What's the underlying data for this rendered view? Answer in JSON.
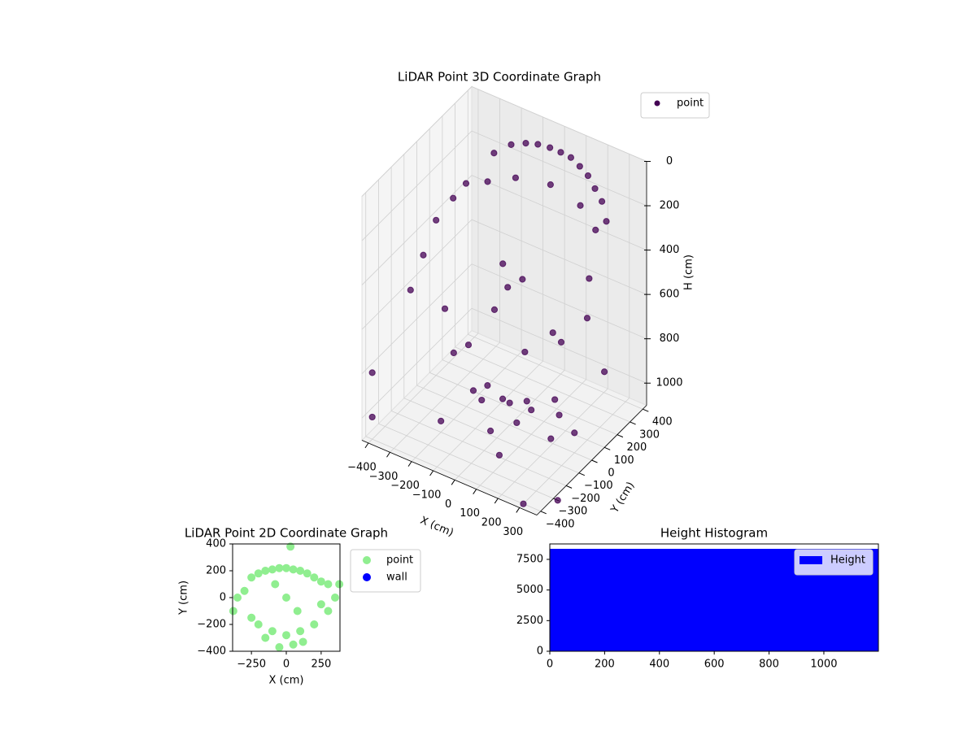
{
  "chart_data": [
    {
      "type": "scatter3d",
      "title": "LiDAR Point 3D Coordinate Graph",
      "xlabel": "X (cm)",
      "ylabel": "Y (cm)",
      "zlabel": "H (cm)",
      "xlim": [
        -430,
        380
      ],
      "ylim": [
        -430,
        430
      ],
      "zlim": [
        1100,
        0
      ],
      "xticks": [
        {
          "value": -400,
          "label": "−400"
        },
        {
          "value": -300,
          "label": "−300"
        },
        {
          "value": -200,
          "label": "−200"
        },
        {
          "value": -100,
          "label": "−100"
        },
        0,
        100,
        200,
        300
      ],
      "yticks": [
        {
          "value": -400,
          "label": "−400"
        },
        {
          "value": -300,
          "label": "−300"
        },
        {
          "value": -200,
          "label": "−200"
        },
        {
          "value": -100,
          "label": "−100"
        },
        0,
        100,
        200,
        300,
        400
      ],
      "zticks": [
        0,
        200,
        400,
        600,
        800,
        1000
      ],
      "grid": true,
      "series": [
        {
          "name": "point",
          "color": "#440154",
          "x": [
            -250,
            -200,
            -150,
            -100,
            -50,
            0,
            50,
            100,
            150,
            200,
            250,
            300,
            -250,
            -150,
            0,
            150,
            250,
            -400,
            -400,
            -400,
            -380,
            -350,
            -300,
            -200,
            -100,
            0,
            100,
            200,
            300,
            250,
            -50,
            150,
            -250,
            50,
            -150,
            350,
            0,
            50,
            -50,
            100,
            80,
            -100,
            150,
            200,
            -150,
            0,
            250,
            300,
            -200,
            100,
            -400,
            -400,
            300,
            400
          ],
          "y": [
            300,
            350,
            380,
            390,
            400,
            400,
            395,
            380,
            360,
            330,
            300,
            250,
            250,
            300,
            320,
            300,
            250,
            100,
            0,
            -100,
            200,
            250,
            0,
            -100,
            50,
            100,
            -50,
            0,
            100,
            200,
            -200,
            150,
            100,
            -100,
            200,
            150,
            0,
            50,
            30,
            0,
            -80,
            -50,
            100,
            50,
            80,
            -150,
            -100,
            0,
            -200,
            -250,
            -400,
            -400,
            -400,
            -300
          ],
          "z": [
            150,
            120,
            110,
            100,
            100,
            100,
            100,
            110,
            120,
            140,
            160,
            200,
            250,
            220,
            200,
            220,
            260,
            400,
            500,
            600,
            350,
            300,
            700,
            800,
            650,
            500,
            700,
            600,
            550,
            450,
            850,
            750,
            900,
            400,
            550,
            800,
            1000,
            1000,
            1020,
            990,
            1010,
            1000,
            980,
            1000,
            1030,
            1040,
            1000,
            1010,
            1050,
            1050,
            1000,
            800,
            1100,
            1100
          ]
        }
      ]
    },
    {
      "type": "scatter",
      "title": "LiDAR Point 2D Coordinate Graph",
      "xlabel": "X (cm)",
      "ylabel": "Y (cm)",
      "xlim": [
        -385,
        385
      ],
      "ylim": [
        -400,
        400
      ],
      "xticks": [
        {
          "value": -250,
          "label": "−250"
        },
        0,
        250
      ],
      "yticks": [
        {
          "value": -400,
          "label": "−400"
        },
        {
          "value": -200,
          "label": "−200"
        },
        0,
        200,
        400
      ],
      "series": [
        {
          "name": "point",
          "color": "#90ee90",
          "x": [
            -250,
            -200,
            -150,
            -100,
            -50,
            0,
            50,
            100,
            150,
            200,
            250,
            300,
            -300,
            -350,
            -380,
            380,
            350,
            300,
            -200,
            -100,
            0,
            100,
            200,
            -150,
            50,
            120,
            -50,
            0,
            250,
            -250,
            -80,
            80,
            30
          ],
          "y": [
            150,
            180,
            200,
            210,
            220,
            220,
            210,
            200,
            180,
            150,
            120,
            100,
            50,
            0,
            -100,
            100,
            0,
            -100,
            -200,
            -250,
            -280,
            -250,
            -200,
            -300,
            -350,
            -330,
            -370,
            0,
            -50,
            -150,
            100,
            -100,
            380
          ],
          "marker_size": 5
        },
        {
          "name": "wall",
          "color": "#0000ff",
          "x": [],
          "y": [],
          "marker_size": 5
        }
      ]
    },
    {
      "type": "histogram",
      "title": "Height Histogram",
      "xlim": [
        0,
        1199
      ],
      "ylim": [
        0,
        8760
      ],
      "xticks": [
        0,
        200,
        400,
        600,
        800,
        1000
      ],
      "yticks": [
        0,
        2500,
        5000,
        7500
      ],
      "bins": [
        0,
        1199
      ],
      "legend": "upper right",
      "series": [
        {
          "name": "Height",
          "color": "#0000ff",
          "counts": [
            8360
          ]
        }
      ]
    }
  ]
}
